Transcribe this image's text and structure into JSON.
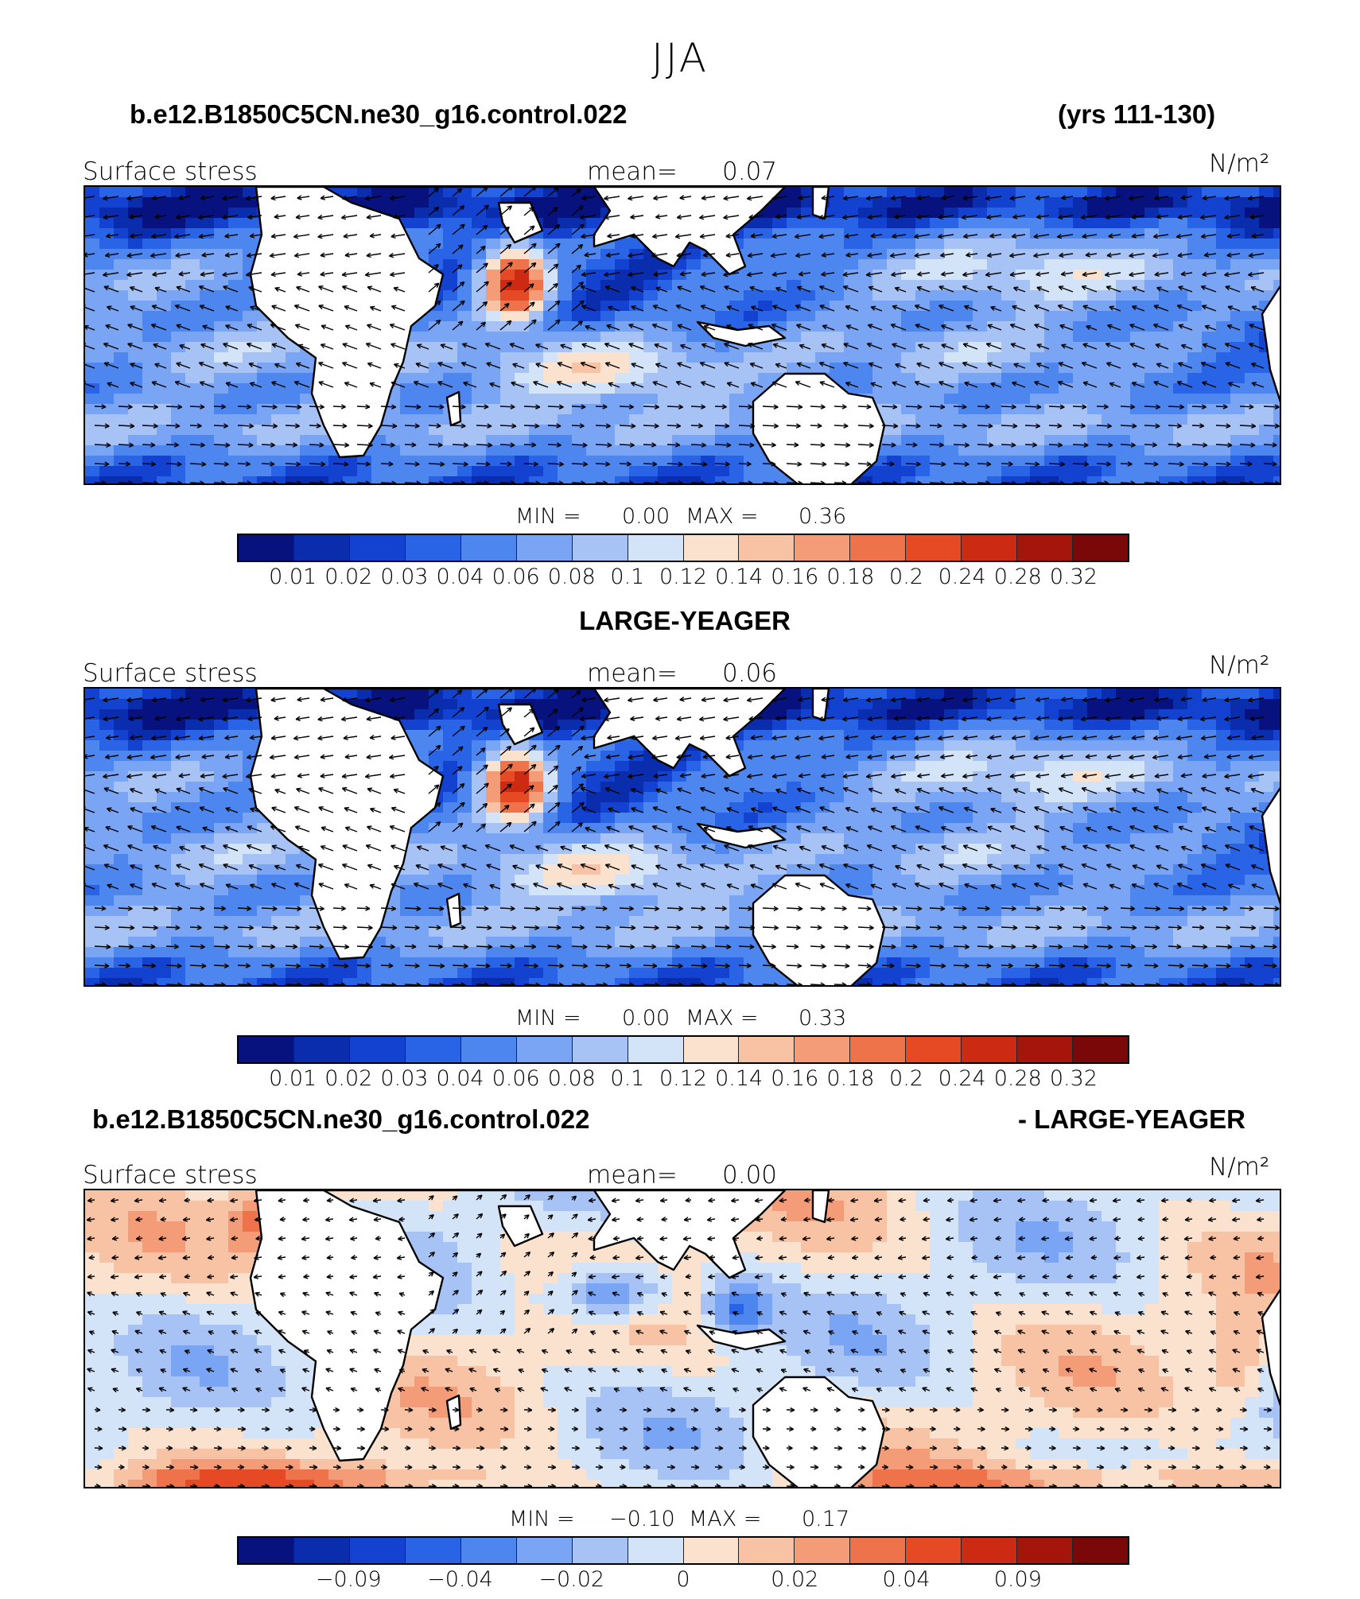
{
  "figure_title": "JJA",
  "units": "N/m²",
  "panels": [
    {
      "title_left": "b.e12.B1850C5CN.ne30_g16.control.022",
      "title_right": "(yrs 111-130)",
      "variable": "Surface stress",
      "mean_label": "mean=",
      "mean_value": "0.07",
      "min_label": "MIN =",
      "min_value": "0.00",
      "max_label": "MAX =",
      "max_value": "0.36",
      "kind": "abs"
    },
    {
      "title_left": "",
      "title_center": "LARGE-YEAGER",
      "title_right": "",
      "variable": "Surface stress",
      "mean_label": "mean=",
      "mean_value": "0.06",
      "min_label": "MIN =",
      "min_value": "0.00",
      "max_label": "MAX =",
      "max_value": "0.33",
      "kind": "abs"
    },
    {
      "title_left": "b.e12.B1850C5CN.ne30_g16.control.022",
      "title_right": "- LARGE-YEAGER",
      "variable": "Surface stress",
      "mean_label": "mean=",
      "mean_value": "0.00",
      "min_label": "MIN =",
      "min_value": "−0.10",
      "max_label": "MAX =",
      "max_value": "0.17",
      "kind": "diff"
    }
  ],
  "colorbar_colors": [
    "#08127e",
    "#0a2dae",
    "#1442d0",
    "#2a64e6",
    "#4d86ee",
    "#7aa4f4",
    "#a7c3f6",
    "#d3e3f8",
    "#fbe2cf",
    "#f8c3a4",
    "#f49c78",
    "#ef734a",
    "#e54a25",
    "#cc2a12",
    "#a5150c",
    "#7a0808"
  ],
  "colorbar_abs_ticks": [
    "0.01",
    "0.02",
    "0.03",
    "0.04",
    "0.06",
    "0.08",
    "0.1",
    "0.12",
    "0.14",
    "0.16",
    "0.18",
    "0.2",
    "0.24",
    "0.28",
    "0.32"
  ],
  "colorbar_diff_ticks": [
    {
      "label": "−0.09",
      "boundary": 2
    },
    {
      "label": "−0.04",
      "boundary": 4
    },
    {
      "label": "−0.02",
      "boundary": 6
    },
    {
      "label": "0",
      "boundary": 8
    },
    {
      "label": "0.02",
      "boundary": 10
    },
    {
      "label": "0.04",
      "boundary": 12
    },
    {
      "label": "0.09",
      "boundary": 14
    }
  ]
}
